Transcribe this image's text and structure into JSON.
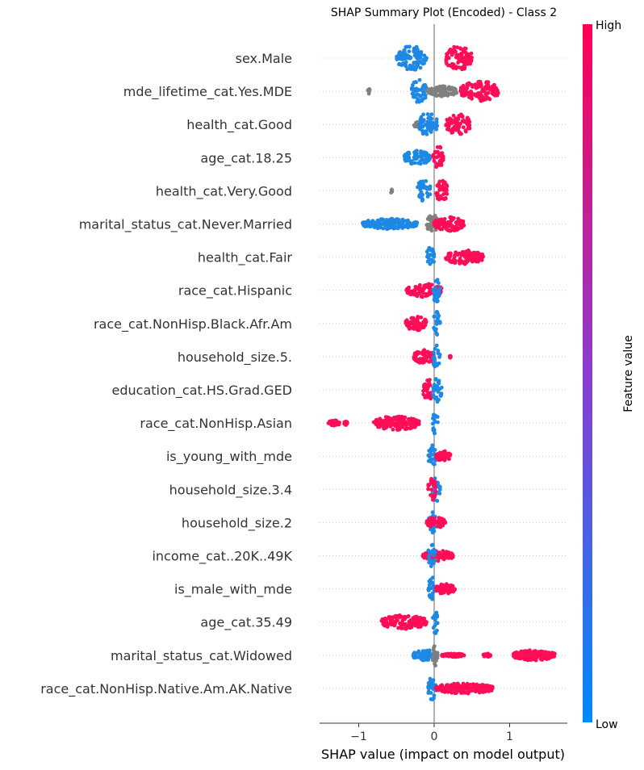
{
  "chart_data": {
    "type": "scatter",
    "title": "SHAP Summary Plot (Encoded) - Class 2",
    "xlabel": "SHAP value (impact on model output)",
    "xlim": [
      -1.5,
      1.8
    ],
    "xticks": [
      {
        "value": -1,
        "label": "−1"
      },
      {
        "value": 0,
        "label": "0"
      },
      {
        "value": 1,
        "label": "1"
      }
    ],
    "colorbar": {
      "label": "Feature value",
      "high": "High",
      "low": "Low"
    },
    "colors": {
      "high": "#ff0d57",
      "low": "#1e88e5",
      "missing": "#808080",
      "zero_line": "#999999",
      "row_line": "#cccccc",
      "axis": "#333333"
    },
    "features": [
      {
        "name": "sex.Male",
        "groups": [
          {
            "color": "low",
            "min": -0.5,
            "max": -0.1,
            "spread": 0.35
          },
          {
            "color": "high",
            "min": 0.15,
            "max": 0.5,
            "spread": 0.35
          }
        ]
      },
      {
        "name": "mde_lifetime_cat.Yes.MDE",
        "groups": [
          {
            "color": "missing",
            "min": -0.88,
            "max": -0.85,
            "spread": 0.08
          },
          {
            "color": "low",
            "min": -0.3,
            "max": -0.1,
            "spread": 0.35
          },
          {
            "color": "missing",
            "min": -0.1,
            "max": 0.3,
            "spread": 0.15
          },
          {
            "color": "high",
            "min": 0.35,
            "max": 0.85,
            "spread": 0.3
          }
        ]
      },
      {
        "name": "health_cat.Good",
        "groups": [
          {
            "color": "missing",
            "min": -0.27,
            "max": -0.2,
            "spread": 0.08
          },
          {
            "color": "low",
            "min": -0.2,
            "max": 0.05,
            "spread": 0.35
          },
          {
            "color": "high",
            "min": 0.15,
            "max": 0.48,
            "spread": 0.3
          }
        ]
      },
      {
        "name": "age_cat.18.25",
        "groups": [
          {
            "color": "low",
            "min": -0.4,
            "max": -0.05,
            "spread": 0.2
          },
          {
            "color": "high",
            "min": -0.02,
            "max": 0.12,
            "spread": 0.35
          }
        ]
      },
      {
        "name": "health_cat.Very.Good",
        "groups": [
          {
            "color": "missing",
            "min": -0.58,
            "max": -0.55,
            "spread": 0.08
          },
          {
            "color": "low",
            "min": -0.22,
            "max": -0.05,
            "spread": 0.35
          },
          {
            "color": "high",
            "min": 0.02,
            "max": 0.18,
            "spread": 0.3
          }
        ]
      },
      {
        "name": "marital_status_cat.Never.Married",
        "groups": [
          {
            "color": "low",
            "min": -0.95,
            "max": -0.22,
            "spread": 0.15
          },
          {
            "color": "missing",
            "min": -0.1,
            "max": 0.05,
            "spread": 0.3
          },
          {
            "color": "high",
            "min": 0.0,
            "max": 0.4,
            "spread": 0.2
          }
        ]
      },
      {
        "name": "health_cat.Fair",
        "groups": [
          {
            "color": "low",
            "min": -0.1,
            "max": 0.0,
            "spread": 0.3
          },
          {
            "color": "high",
            "min": 0.15,
            "max": 0.65,
            "spread": 0.2
          }
        ]
      },
      {
        "name": "race_cat.Hispanic",
        "groups": [
          {
            "color": "high",
            "min": -0.37,
            "max": 0.1,
            "spread": 0.2
          },
          {
            "color": "low",
            "min": -0.02,
            "max": 0.08,
            "spread": 0.35
          }
        ]
      },
      {
        "name": "race_cat.NonHisp.Black.Afr.Am",
        "groups": [
          {
            "color": "high",
            "min": -0.38,
            "max": -0.1,
            "spread": 0.2
          },
          {
            "color": "low",
            "min": -0.02,
            "max": 0.08,
            "spread": 0.35
          }
        ]
      },
      {
        "name": "household_size.5.",
        "groups": [
          {
            "color": "high",
            "min": -0.27,
            "max": 0.0,
            "spread": 0.2
          },
          {
            "color": "high",
            "min": 0.2,
            "max": 0.22,
            "spread": 0.05
          },
          {
            "color": "low",
            "min": -0.02,
            "max": 0.08,
            "spread": 0.35
          }
        ]
      },
      {
        "name": "education_cat.HS.Grad.GED",
        "groups": [
          {
            "color": "high",
            "min": -0.15,
            "max": 0.0,
            "spread": 0.3
          },
          {
            "color": "low",
            "min": -0.02,
            "max": 0.1,
            "spread": 0.35
          }
        ]
      },
      {
        "name": "race_cat.NonHisp.Asian",
        "groups": [
          {
            "color": "high",
            "min": -1.4,
            "max": -1.25,
            "spread": 0.08
          },
          {
            "color": "high",
            "min": -1.2,
            "max": -1.15,
            "spread": 0.06
          },
          {
            "color": "high",
            "min": -0.8,
            "max": -0.2,
            "spread": 0.2
          },
          {
            "color": "low",
            "min": -0.02,
            "max": 0.05,
            "spread": 0.35
          }
        ]
      },
      {
        "name": "is_young_with_mde",
        "groups": [
          {
            "color": "low",
            "min": -0.08,
            "max": 0.02,
            "spread": 0.35
          },
          {
            "color": "high",
            "min": 0.02,
            "max": 0.22,
            "spread": 0.15
          }
        ]
      },
      {
        "name": "household_size.3.4",
        "groups": [
          {
            "color": "low",
            "min": -0.02,
            "max": 0.08,
            "spread": 0.35
          },
          {
            "color": "high",
            "min": -0.08,
            "max": 0.02,
            "spread": 0.35
          }
        ]
      },
      {
        "name": "household_size.2",
        "groups": [
          {
            "color": "low",
            "min": -0.08,
            "max": 0.02,
            "spread": 0.35
          },
          {
            "color": "high",
            "min": -0.1,
            "max": 0.15,
            "spread": 0.15
          }
        ]
      },
      {
        "name": "income_cat..20K..49K",
        "groups": [
          {
            "color": "high",
            "min": -0.15,
            "max": 0.25,
            "spread": 0.15
          },
          {
            "color": "low",
            "min": -0.08,
            "max": 0.02,
            "spread": 0.35
          }
        ]
      },
      {
        "name": "is_male_with_mde",
        "groups": [
          {
            "color": "low",
            "min": -0.08,
            "max": 0.02,
            "spread": 0.35
          },
          {
            "color": "high",
            "min": 0.02,
            "max": 0.28,
            "spread": 0.15
          }
        ]
      },
      {
        "name": "age_cat.35.49",
        "groups": [
          {
            "color": "high",
            "min": -0.7,
            "max": -0.1,
            "spread": 0.2
          },
          {
            "color": "low",
            "min": -0.02,
            "max": 0.05,
            "spread": 0.35
          }
        ]
      },
      {
        "name": "marital_status_cat.Widowed",
        "groups": [
          {
            "color": "low",
            "min": -0.28,
            "max": 0.05,
            "spread": 0.15
          },
          {
            "color": "missing",
            "min": -0.02,
            "max": 0.05,
            "spread": 0.3
          },
          {
            "color": "high",
            "min": 0.1,
            "max": 0.4,
            "spread": 0.05
          },
          {
            "color": "high",
            "min": 0.65,
            "max": 0.75,
            "spread": 0.05
          },
          {
            "color": "high",
            "min": 1.05,
            "max": 1.6,
            "spread": 0.15
          }
        ]
      },
      {
        "name": "race_cat.NonHisp.Native.Am.AK.Native",
        "groups": [
          {
            "color": "low",
            "min": -0.08,
            "max": 0.02,
            "spread": 0.35
          },
          {
            "color": "high",
            "min": 0.02,
            "max": 0.78,
            "spread": 0.15
          }
        ]
      }
    ]
  }
}
